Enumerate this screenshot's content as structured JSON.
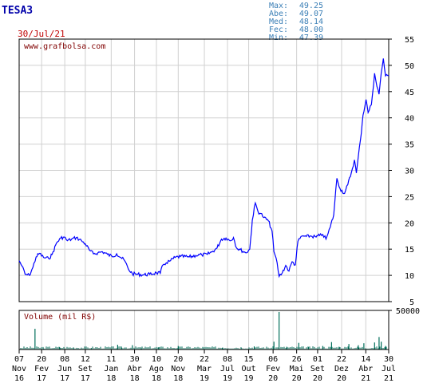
{
  "header": {
    "ticker": "TESA3",
    "date": "30/Jul/21",
    "source": "www.grafbolsa.com"
  },
  "stats": [
    {
      "label": "Max:",
      "value": "49.25"
    },
    {
      "label": "Abe:",
      "value": "49.07"
    },
    {
      "label": "Med:",
      "value": "48.14"
    },
    {
      "label": "Fec:",
      "value": "48.00"
    },
    {
      "label": "Min:",
      "value": "47.39"
    }
  ],
  "colors": {
    "price_line": "#0000ff",
    "volume_bar": "#006e5a",
    "grid": "#d0d0d0",
    "ticker": "#0000aa",
    "date": "#c00000",
    "source": "#800000",
    "stats": "#3b7fb6",
    "axis": "#000000"
  },
  "chart_data": [
    {
      "type": "line",
      "name": "price",
      "ylim": [
        5,
        55
      ],
      "yticks": [
        5,
        10,
        15,
        20,
        25,
        30,
        35,
        40,
        45,
        50,
        55
      ],
      "x_range": [
        "2016-11-07",
        "2021-07-30"
      ],
      "points": [
        [
          "2016-11-07",
          12.8
        ],
        [
          "2016-11-20",
          11.8
        ],
        [
          "2016-12-05",
          10.2
        ],
        [
          "2016-12-25",
          10.0
        ],
        [
          "2017-01-10",
          11.5
        ],
        [
          "2017-01-25",
          13.5
        ],
        [
          "2017-02-10",
          14.2
        ],
        [
          "2017-03-01",
          13.4
        ],
        [
          "2017-03-25",
          13.2
        ],
        [
          "2017-04-10",
          14.0
        ],
        [
          "2017-05-01",
          16.2
        ],
        [
          "2017-05-20",
          17.1
        ],
        [
          "2017-06-05",
          17.3
        ],
        [
          "2017-06-20",
          16.6
        ],
        [
          "2017-07-10",
          16.9
        ],
        [
          "2017-08-01",
          17.2
        ],
        [
          "2017-08-25",
          16.6
        ],
        [
          "2017-09-12",
          16.0
        ],
        [
          "2017-10-01",
          14.8
        ],
        [
          "2017-10-20",
          14.1
        ],
        [
          "2017-11-10",
          14.3
        ],
        [
          "2017-12-01",
          14.5
        ],
        [
          "2017-12-25",
          14.0
        ],
        [
          "2018-01-15",
          13.6
        ],
        [
          "2018-02-05",
          14.1
        ],
        [
          "2018-02-25",
          13.4
        ],
        [
          "2018-03-15",
          12.8
        ],
        [
          "2018-04-01",
          11.2
        ],
        [
          "2018-04-20",
          10.3
        ],
        [
          "2018-05-15",
          10.2
        ],
        [
          "2018-06-10",
          10.1
        ],
        [
          "2018-07-10",
          10.2
        ],
        [
          "2018-08-10",
          10.5
        ],
        [
          "2018-08-28",
          10.4
        ],
        [
          "2018-09-10",
          12.0
        ],
        [
          "2018-09-25",
          12.4
        ],
        [
          "2018-10-15",
          12.8
        ],
        [
          "2018-11-05",
          13.4
        ],
        [
          "2018-12-01",
          13.6
        ],
        [
          "2019-01-10",
          13.5
        ],
        [
          "2019-02-10",
          13.8
        ],
        [
          "2019-03-10",
          13.9
        ],
        [
          "2019-04-05",
          14.0
        ],
        [
          "2019-05-01",
          14.6
        ],
        [
          "2019-05-20",
          15.2
        ],
        [
          "2019-06-10",
          16.9
        ],
        [
          "2019-07-01",
          17.1
        ],
        [
          "2019-07-20",
          16.6
        ],
        [
          "2019-08-05",
          17.2
        ],
        [
          "2019-08-20",
          15.2
        ],
        [
          "2019-09-05",
          14.9
        ],
        [
          "2019-10-01",
          14.3
        ],
        [
          "2019-10-20",
          15.0
        ],
        [
          "2019-11-01",
          20.5
        ],
        [
          "2019-11-15",
          23.8
        ],
        [
          "2019-11-28",
          22.1
        ],
        [
          "2019-12-10",
          21.8
        ],
        [
          "2019-12-25",
          21.0
        ],
        [
          "2020-01-15",
          20.4
        ],
        [
          "2020-02-01",
          18.5
        ],
        [
          "2020-02-10",
          14.5
        ],
        [
          "2020-02-25",
          12.4
        ],
        [
          "2020-03-05",
          9.8
        ],
        [
          "2020-03-20",
          10.5
        ],
        [
          "2020-04-05",
          11.9
        ],
        [
          "2020-04-20",
          10.8
        ],
        [
          "2020-05-05",
          12.6
        ],
        [
          "2020-05-20",
          12.0
        ],
        [
          "2020-06-01",
          16.5
        ],
        [
          "2020-06-20",
          17.5
        ],
        [
          "2020-07-10",
          17.4
        ],
        [
          "2020-08-01",
          17.5
        ],
        [
          "2020-08-25",
          17.3
        ],
        [
          "2020-09-10",
          17.6
        ],
        [
          "2020-09-25",
          17.8
        ],
        [
          "2020-10-10",
          16.9
        ],
        [
          "2020-10-20",
          18.0
        ],
        [
          "2020-10-30",
          19.2
        ],
        [
          "2020-11-15",
          21.5
        ],
        [
          "2020-11-30",
          28.5
        ],
        [
          "2020-12-15",
          26.5
        ],
        [
          "2021-01-05",
          25.6
        ],
        [
          "2021-01-20",
          27.3
        ],
        [
          "2021-02-05",
          29.5
        ],
        [
          "2021-02-20",
          32.0
        ],
        [
          "2021-03-01",
          29.5
        ],
        [
          "2021-03-20",
          35.8
        ],
        [
          "2021-04-01",
          40.5
        ],
        [
          "2021-04-15",
          43.5
        ],
        [
          "2021-04-25",
          41.0
        ],
        [
          "2021-05-10",
          42.5
        ],
        [
          "2021-05-25",
          48.5
        ],
        [
          "2021-06-05",
          46.0
        ],
        [
          "2021-06-15",
          44.5
        ],
        [
          "2021-06-25",
          48.5
        ],
        [
          "2021-07-05",
          51.3
        ],
        [
          "2021-07-15",
          48.0
        ],
        [
          "2021-07-30",
          48.0
        ]
      ]
    },
    {
      "type": "bar",
      "name": "volume",
      "label": "Volume (mil R$)",
      "ylim": [
        0,
        50000
      ],
      "yticks": [
        50000
      ],
      "bars": [
        [
          "2017-01-20",
          26500
        ],
        [
          "2017-03-01",
          1200
        ],
        [
          "2017-05-15",
          3000
        ],
        [
          "2017-07-20",
          1500
        ],
        [
          "2017-10-10",
          1800
        ],
        [
          "2018-02-10",
          6000
        ],
        [
          "2018-03-01",
          2500
        ],
        [
          "2018-04-20",
          5500
        ],
        [
          "2018-06-01",
          1200
        ],
        [
          "2018-08-20",
          2800
        ],
        [
          "2018-11-20",
          4500
        ],
        [
          "2019-03-15",
          1500
        ],
        [
          "2019-06-15",
          2500
        ],
        [
          "2019-09-10",
          2000
        ],
        [
          "2019-11-10",
          4000
        ],
        [
          "2020-02-10",
          10000
        ],
        [
          "2020-03-05",
          48000
        ],
        [
          "2020-04-10",
          3500
        ],
        [
          "2020-06-05",
          8500
        ],
        [
          "2020-07-20",
          3000
        ],
        [
          "2020-09-25",
          4500
        ],
        [
          "2020-11-05",
          9500
        ],
        [
          "2020-12-10",
          3500
        ],
        [
          "2021-01-25",
          7000
        ],
        [
          "2021-03-10",
          5500
        ],
        [
          "2021-04-05",
          8000
        ],
        [
          "2021-05-25",
          9000
        ],
        [
          "2021-06-15",
          16000
        ],
        [
          "2021-06-25",
          10000
        ],
        [
          "2021-07-15",
          4500
        ]
      ]
    }
  ],
  "x_axis": {
    "labels": [
      {
        "date": "2016-11-07",
        "day": "07",
        "month": "Nov",
        "year": "16"
      },
      {
        "date": "2017-02-20",
        "day": "20",
        "month": "Fev",
        "year": "17"
      },
      {
        "date": "2017-06-08",
        "day": "08",
        "month": "Jun",
        "year": "17"
      },
      {
        "date": "2017-09-12",
        "day": "12",
        "month": "Set",
        "year": "17"
      },
      {
        "date": "2018-01-11",
        "day": "11",
        "month": "Jan",
        "year": "18"
      },
      {
        "date": "2018-04-30",
        "day": "30",
        "month": "Abr",
        "year": "18"
      },
      {
        "date": "2018-08-10",
        "day": "10",
        "month": "Ago",
        "year": "18"
      },
      {
        "date": "2018-11-20",
        "day": "20",
        "month": "Nov",
        "year": "18"
      },
      {
        "date": "2019-03-22",
        "day": "22",
        "month": "Mar",
        "year": "19"
      },
      {
        "date": "2019-07-08",
        "day": "08",
        "month": "Jul",
        "year": "19"
      },
      {
        "date": "2019-10-15",
        "day": "15",
        "month": "Out",
        "year": "19"
      },
      {
        "date": "2020-02-06",
        "day": "06",
        "month": "Fev",
        "year": "20"
      },
      {
        "date": "2020-05-26",
        "day": "26",
        "month": "Mai",
        "year": "20"
      },
      {
        "date": "2020-09-01",
        "day": "01",
        "month": "Set",
        "year": "20"
      },
      {
        "date": "2020-12-22",
        "day": "22",
        "month": "Dez",
        "year": "20"
      },
      {
        "date": "2021-04-14",
        "day": "14",
        "month": "Abr",
        "year": "21"
      },
      {
        "date": "2021-07-30",
        "day": "30",
        "month": "Jul",
        "year": "21"
      }
    ]
  }
}
